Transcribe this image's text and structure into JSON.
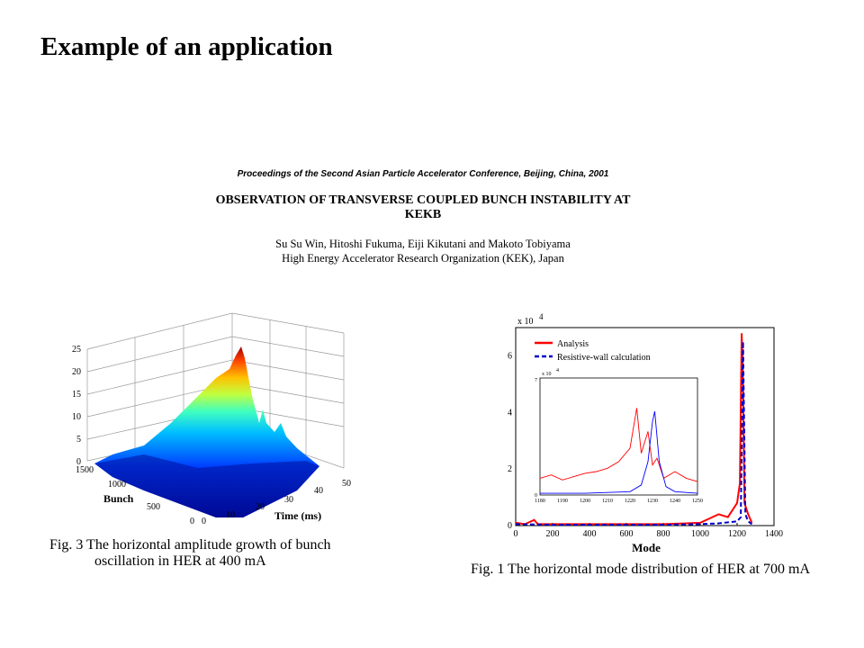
{
  "slide": {
    "title": "Example of an application"
  },
  "paper": {
    "proceedings": "Proceedings of the Second Asian Particle Accelerator Conference, Beijing, China, 2001",
    "title_line1": "OBSERVATION OF TRANSVERSE COUPLED BUNCH INSTABILITY AT",
    "title_line2": "KEKB",
    "authors": "Su Su Win, Hitoshi Fukuma, Eiji Kikutani and Makoto Tobiyama",
    "affiliation": "High Energy Accelerator Research Organization (KEK), Japan"
  },
  "fig3": {
    "caption_line1": "Fig. 3 The horizontal amplitude growth of bunch",
    "caption_line2": "oscillation in HER at 400 mA",
    "z_ticks": [
      "0",
      "5",
      "10",
      "15",
      "20",
      "25"
    ],
    "bunch_ticks": [
      "0",
      "500",
      "1000",
      "1500"
    ],
    "time_ticks": [
      "0",
      "10",
      "20",
      "30",
      "40",
      "50"
    ],
    "bunch_label": "Bunch",
    "time_label": "Time (ms)"
  },
  "fig1": {
    "caption": "Fig. 1 The horizontal mode distribution of HER at 700 mA",
    "y_exponent_base": "x 10",
    "y_exponent": "4",
    "x_ticks": [
      "0",
      "200",
      "400",
      "600",
      "800",
      "1000",
      "1200",
      "1400"
    ],
    "y_ticks": [
      "0",
      "2",
      "4",
      "6"
    ],
    "xlabel": "Mode",
    "legend": [
      "Analysis",
      "Resistive-wall calculation"
    ],
    "inset": {
      "exponent_base": "x 10",
      "exponent": "4",
      "y_top": "7",
      "y_bottom": "0",
      "x_ticks": [
        "1180",
        "1190",
        "1200",
        "1210",
        "1220",
        "1230",
        "1240",
        "1250"
      ]
    }
  },
  "chart_data": [
    {
      "type": "surface",
      "title": "",
      "xlabel": "Bunch",
      "ylabel": "Time (ms)",
      "zlabel": "",
      "x_range": [
        0,
        1500
      ],
      "y_range": [
        0,
        50
      ],
      "z_range": [
        0,
        25
      ],
      "grid": true,
      "peak": {
        "bunch": 1250,
        "time": 45,
        "amplitude": 24
      }
    },
    {
      "type": "line",
      "title": "",
      "xlabel": "Mode",
      "ylabel": "",
      "y_scale_note": "x 10^4",
      "xlim": [
        0,
        1400
      ],
      "ylim": [
        0,
        7
      ],
      "legend_position": "top-left",
      "series": [
        {
          "name": "Analysis",
          "color": "#ff0000",
          "style": "solid",
          "x": [
            0,
            50,
            100,
            120,
            200,
            400,
            600,
            800,
            1000,
            1100,
            1150,
            1200,
            1215,
            1225,
            1232,
            1240,
            1260,
            1280
          ],
          "y": [
            0.1,
            0.05,
            0.2,
            0.05,
            0.05,
            0.05,
            0.05,
            0.05,
            0.1,
            0.4,
            0.3,
            0.8,
            1.5,
            6.8,
            5.0,
            0.8,
            0.4,
            0.1
          ]
        },
        {
          "name": "Resistive-wall calculation",
          "color": "#0000cc",
          "style": "dashed",
          "x": [
            0,
            200,
            400,
            600,
            800,
            1000,
            1100,
            1200,
            1220,
            1232,
            1245,
            1260,
            1280
          ],
          "y": [
            0.05,
            0.03,
            0.03,
            0.03,
            0.03,
            0.05,
            0.08,
            0.15,
            0.3,
            6.5,
            0.4,
            0.15,
            0.05
          ]
        }
      ],
      "inset": {
        "xlim": [
          1180,
          1250
        ],
        "ylim": [
          0,
          7
        ],
        "series": [
          {
            "name": "Analysis",
            "color": "#ff0000",
            "x": [
              1180,
              1185,
              1190,
              1195,
              1200,
              1205,
              1210,
              1215,
              1220,
              1223,
              1225,
              1228,
              1230,
              1232,
              1235,
              1240,
              1245,
              1250
            ],
            "y": [
              1.0,
              1.2,
              0.9,
              1.1,
              1.3,
              1.4,
              1.6,
              2.0,
              2.8,
              5.2,
              2.5,
              3.8,
              1.8,
              2.2,
              1.0,
              1.4,
              1.0,
              0.8
            ]
          },
          {
            "name": "Resistive-wall calculation",
            "color": "#0000ff",
            "x": [
              1180,
              1200,
              1220,
              1225,
              1228,
              1230,
              1231,
              1233,
              1236,
              1240,
              1250
            ],
            "y": [
              0.1,
              0.1,
              0.2,
              0.6,
              2.0,
              4.4,
              5.0,
              2.0,
              0.5,
              0.2,
              0.1
            ]
          }
        ]
      }
    }
  ]
}
